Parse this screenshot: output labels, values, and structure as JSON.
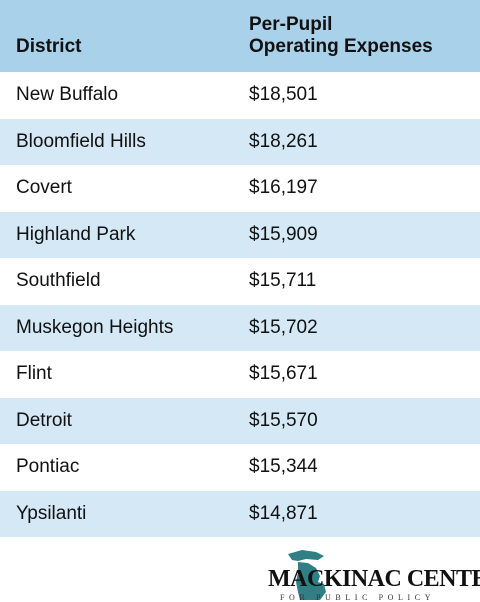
{
  "table": {
    "headers": {
      "district": "District",
      "expenses": "Per-Pupil\nOperating Expenses"
    },
    "rows": [
      {
        "district": "New Buffalo",
        "expense": "$18,501"
      },
      {
        "district": "Bloomfield Hills",
        "expense": "$18,261"
      },
      {
        "district": "Covert",
        "expense": "$16,197"
      },
      {
        "district": "Highland Park",
        "expense": "$15,909"
      },
      {
        "district": "Southfield",
        "expense": "$15,711"
      },
      {
        "district": "Muskegon Heights",
        "expense": "$15,702"
      },
      {
        "district": "Flint",
        "expense": "$15,671"
      },
      {
        "district": "Detroit",
        "expense": "$15,570"
      },
      {
        "district": "Pontiac",
        "expense": "$15,344"
      },
      {
        "district": "Ypsilanti",
        "expense": "$14,871"
      }
    ]
  },
  "logo": {
    "name": "MACKINAC CENTER",
    "subtitle": "FOR PUBLIC POLICY",
    "icon": "michigan-map-icon",
    "color": "#2f7f84"
  },
  "colors": {
    "header_bg": "#a9d1ea",
    "stripe_bg": "#d4e8f6"
  }
}
